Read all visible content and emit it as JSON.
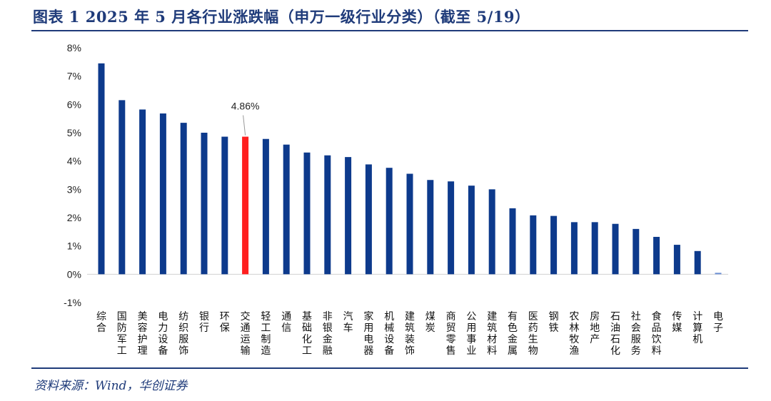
{
  "header": {
    "title": "图表 1   2025 年 5 月各行业涨跌幅（申万一级行业分类）（截至 5/19）"
  },
  "footer": {
    "source": "资料来源：Wind，华创证券"
  },
  "colors": {
    "bar": "#0d3a8c",
    "highlight": "#ff1f1f",
    "rule": "#1f3b7a"
  },
  "chart_data": {
    "type": "bar",
    "categories": [
      "综合",
      "国防军工",
      "美容护理",
      "电力设备",
      "纺织服饰",
      "银行",
      "环保",
      "交通运输",
      "轻工制造",
      "通信",
      "基础化工",
      "非银金融",
      "汽车",
      "家用电器",
      "机械设备",
      "建筑装饰",
      "煤炭",
      "商贸零售",
      "公用事业",
      "建筑材料",
      "有色金属",
      "医药生物",
      "钢铁",
      "农林牧渔",
      "房地产",
      "石油石化",
      "社会服务",
      "食品饮料",
      "传媒",
      "计算机",
      "电子"
    ],
    "values": [
      7.45,
      6.15,
      5.82,
      5.68,
      5.35,
      5.0,
      4.86,
      4.86,
      4.78,
      4.58,
      4.3,
      4.2,
      4.14,
      3.88,
      3.76,
      3.55,
      3.33,
      3.28,
      3.13,
      3.0,
      2.33,
      2.08,
      2.06,
      1.84,
      1.84,
      1.78,
      1.6,
      1.32,
      1.04,
      0.82,
      0.05
    ],
    "highlight_index": 7,
    "annotation": {
      "index": 7,
      "text": "4.86%"
    },
    "ylim": [
      -1,
      8
    ],
    "yticks": [
      "-1%",
      "0%",
      "1%",
      "2%",
      "3%",
      "4%",
      "5%",
      "6%",
      "7%",
      "8%"
    ],
    "ytick_values": [
      -1,
      0,
      1,
      2,
      3,
      4,
      5,
      6,
      7,
      8
    ],
    "xlabel": "",
    "ylabel": "",
    "grid": false,
    "legend": "none"
  }
}
